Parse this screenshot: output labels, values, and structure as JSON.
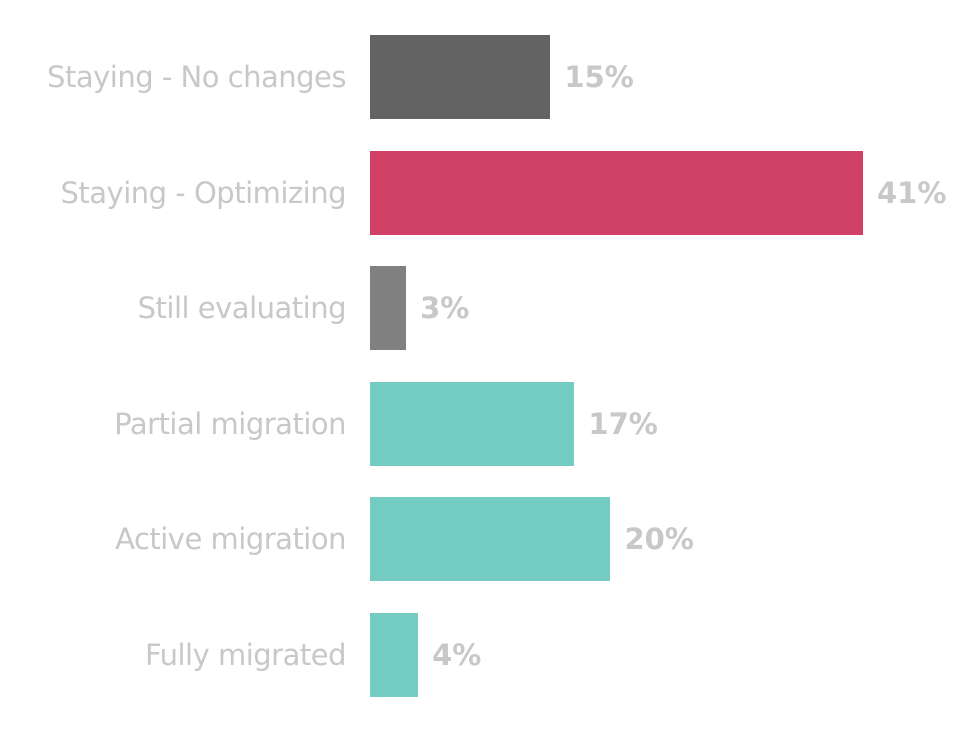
{
  "chart_data": {
    "type": "bar",
    "orientation": "horizontal",
    "title": "",
    "xlabel": "",
    "ylabel": "",
    "categories": [
      "Staying - No changes",
      "Staying - Optimizing",
      "Still evaluating",
      "Partial migration",
      "Active migration",
      "Fully migrated"
    ],
    "values": [
      15,
      41,
      3,
      17,
      20,
      4
    ],
    "value_labels": [
      "15%",
      "41%",
      "3%",
      "17%",
      "20%",
      "4%"
    ],
    "colors": [
      "#636363",
      "#d04064",
      "#808080",
      "#74cbc1",
      "#74cbc1",
      "#74cbc1"
    ],
    "xlim": [
      0,
      41
    ],
    "grid": false,
    "legend": "none"
  }
}
